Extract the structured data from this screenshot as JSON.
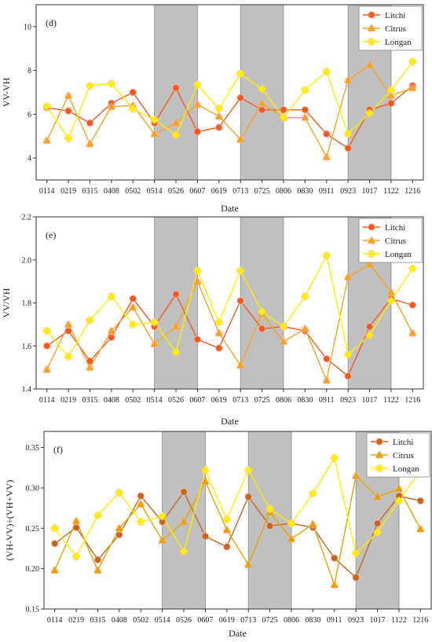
{
  "colors": {
    "litchi": "#f05a1e",
    "litchi_f": "#c8651b",
    "citrus": "#f5a320",
    "citrus_f": "#e8a200",
    "longan": "#ffee00",
    "shade": "#c0c0c0"
  },
  "chart_data": [
    {
      "type": "line",
      "panel_label": "(d)",
      "xlabel": "Date",
      "ylabel": "VV-VH",
      "categories": [
        "0114",
        "0219",
        "0315",
        "0408",
        "0502",
        "0514",
        "0526",
        "0607",
        "0619",
        "0713",
        "0725",
        "0806",
        "0830",
        "0911",
        "0923",
        "1017",
        "1122",
        "1216"
      ],
      "ylim": [
        3.0,
        11.0
      ],
      "yticks": [
        4,
        6,
        8,
        10
      ],
      "ytick_labels": [
        "4",
        "6",
        "8",
        "10"
      ],
      "shaded_spans": [
        [
          5,
          7
        ],
        [
          9,
          11
        ],
        [
          14,
          16
        ]
      ],
      "legend_position": "top-right",
      "series": [
        {
          "name": "Litchi",
          "color_key": "litchi",
          "marker": "circle",
          "values": [
            6.3,
            6.15,
            5.6,
            6.5,
            7.0,
            5.6,
            7.2,
            5.2,
            5.4,
            6.75,
            6.2,
            6.2,
            6.2,
            5.1,
            4.45,
            6.2,
            6.5,
            7.3
          ]
        },
        {
          "name": "Citrus",
          "color_key": "citrus",
          "marker": "triangle",
          "values": [
            4.8,
            6.85,
            4.65,
            6.35,
            6.4,
            5.1,
            5.6,
            6.45,
            5.9,
            4.85,
            6.5,
            5.85,
            5.85,
            4.05,
            7.55,
            8.25,
            6.85,
            7.2
          ]
        },
        {
          "name": "Longan",
          "color_key": "longan",
          "marker": "diamond",
          "values": [
            6.35,
            4.9,
            7.3,
            7.4,
            6.25,
            5.75,
            5.05,
            7.35,
            6.25,
            7.85,
            7.15,
            5.85,
            7.1,
            7.95,
            5.1,
            6.05,
            7.1,
            8.4
          ]
        }
      ]
    },
    {
      "type": "line",
      "panel_label": "(e)",
      "xlabel": "Date",
      "ylabel": "VV/VH",
      "categories": [
        "0114",
        "0219",
        "0315",
        "0408",
        "0502",
        "0514",
        "0526",
        "0607",
        "0619",
        "0713",
        "0725",
        "0806",
        "0830",
        "0911",
        "0923",
        "1017",
        "1122",
        "1216"
      ],
      "ylim": [
        1.4,
        2.2
      ],
      "yticks": [
        1.4,
        1.6,
        1.8,
        2.0,
        2.2
      ],
      "ytick_labels": [
        "1.4",
        "1.6",
        "1.8",
        "2.0",
        "2.2"
      ],
      "shaded_spans": [
        [
          5,
          7
        ],
        [
          9,
          11
        ],
        [
          14,
          16
        ]
      ],
      "legend_position": "top-right",
      "series": [
        {
          "name": "Litchi",
          "color_key": "litchi",
          "marker": "circle",
          "values": [
            1.6,
            1.67,
            1.53,
            1.64,
            1.82,
            1.69,
            1.84,
            1.63,
            1.59,
            1.81,
            1.68,
            1.69,
            1.67,
            1.54,
            1.46,
            1.69,
            1.82,
            1.79
          ]
        },
        {
          "name": "Citrus",
          "color_key": "citrus",
          "marker": "triangle",
          "values": [
            1.49,
            1.7,
            1.5,
            1.67,
            1.78,
            1.61,
            1.69,
            1.9,
            1.66,
            1.51,
            1.75,
            1.62,
            1.68,
            1.44,
            1.92,
            1.98,
            1.85,
            1.66
          ]
        },
        {
          "name": "Longan",
          "color_key": "longan",
          "marker": "diamond",
          "values": [
            1.67,
            1.55,
            1.72,
            1.83,
            1.7,
            1.71,
            1.57,
            1.95,
            1.71,
            1.95,
            1.76,
            1.69,
            1.83,
            2.02,
            1.56,
            1.65,
            1.81,
            1.96
          ]
        }
      ]
    },
    {
      "type": "line",
      "panel_label": "(f)",
      "xlabel": "Date",
      "ylabel": "(VH-VV)÷(VH+VV)",
      "categories": [
        "0114",
        "0219",
        "0315",
        "0408",
        "0502",
        "0514",
        "0526",
        "0607",
        "0619",
        "0713",
        "0725",
        "0806",
        "0830",
        "0911",
        "0923",
        "1017",
        "1122",
        "1216"
      ],
      "ylim": [
        0.15,
        0.37
      ],
      "yticks": [
        0.15,
        0.2,
        0.25,
        0.3,
        0.35
      ],
      "ytick_labels": [
        "0.15",
        "0.20",
        "0.25",
        "0.30",
        "0.35"
      ],
      "shaded_spans": [
        [
          5,
          7
        ],
        [
          9,
          11
        ],
        [
          14,
          16
        ]
      ],
      "legend_position": "top-right",
      "series": [
        {
          "name": "Litchi",
          "color_key": "litchi_f",
          "marker": "circle",
          "values": [
            0.231,
            0.251,
            0.211,
            0.242,
            0.29,
            0.258,
            0.295,
            0.24,
            0.227,
            0.289,
            0.253,
            0.256,
            0.251,
            0.213,
            0.189,
            0.256,
            0.29,
            0.284
          ]
        },
        {
          "name": "Citrus",
          "color_key": "citrus_f",
          "marker": "triangle",
          "values": [
            0.198,
            0.259,
            0.198,
            0.25,
            0.28,
            0.235,
            0.258,
            0.308,
            0.248,
            0.205,
            0.27,
            0.237,
            0.255,
            0.18,
            0.315,
            0.289,
            0.299,
            0.249
          ]
        },
        {
          "name": "Longan",
          "color_key": "longan",
          "marker": "diamond",
          "values": [
            0.25,
            0.215,
            0.266,
            0.294,
            0.258,
            0.265,
            0.221,
            0.322,
            0.261,
            0.322,
            0.274,
            0.256,
            0.293,
            0.337,
            0.219,
            0.245,
            0.284,
            0.322
          ]
        }
      ]
    }
  ]
}
